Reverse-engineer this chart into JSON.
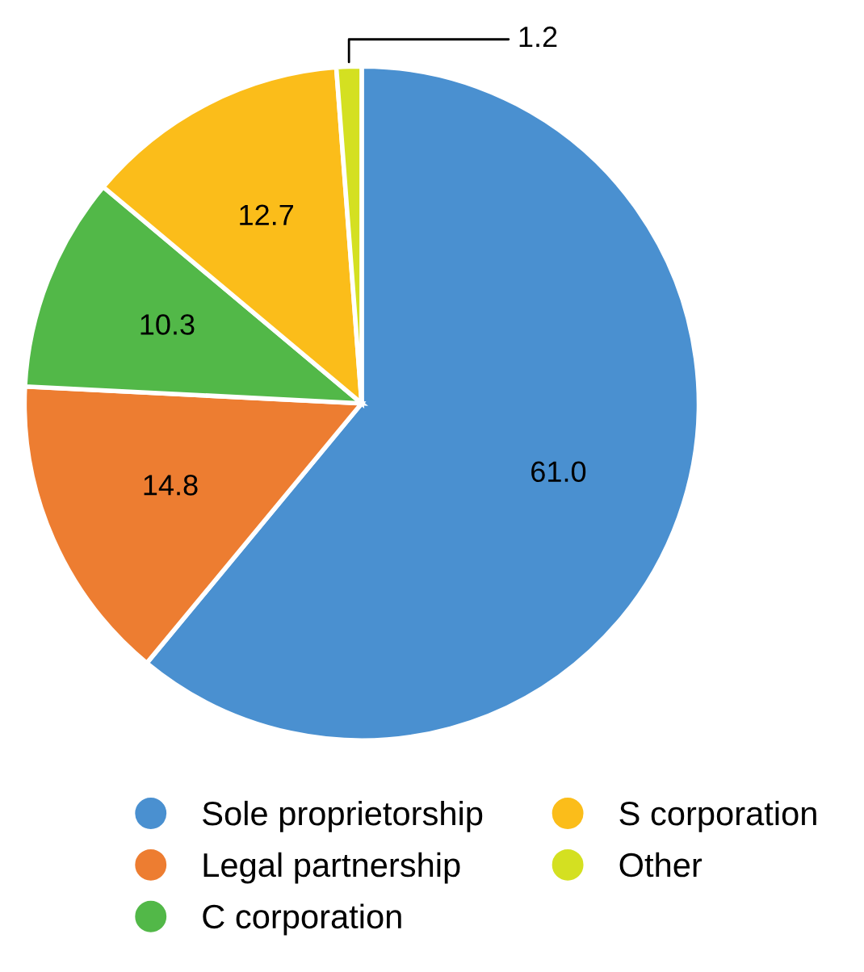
{
  "chart_data": {
    "type": "pie",
    "categories": [
      "Sole proprietorship",
      "Legal partnership",
      "C corporation",
      "S corporation",
      "Other"
    ],
    "values": [
      61.0,
      14.8,
      10.3,
      12.7,
      1.2
    ],
    "colors": [
      "#4a90d0",
      "#ed7d31",
      "#52b848",
      "#fbbd1a",
      "#d4e021"
    ],
    "value_labels": [
      "61.0",
      "14.8",
      "10.3",
      "12.7",
      "1.2"
    ],
    "legend": "bottom"
  }
}
